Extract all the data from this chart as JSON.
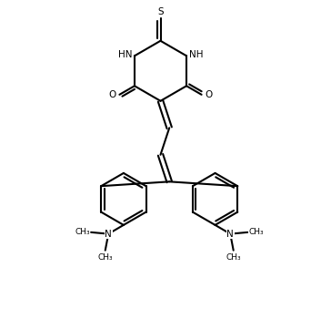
{
  "background_color": "#ffffff",
  "line_color": "#000000",
  "text_color": "#000000",
  "line_width": 1.5,
  "font_size": 7.5,
  "figsize": [
    3.53,
    3.5
  ],
  "dpi": 100,
  "xlim": [
    0,
    10
  ],
  "ylim": [
    0,
    10
  ]
}
